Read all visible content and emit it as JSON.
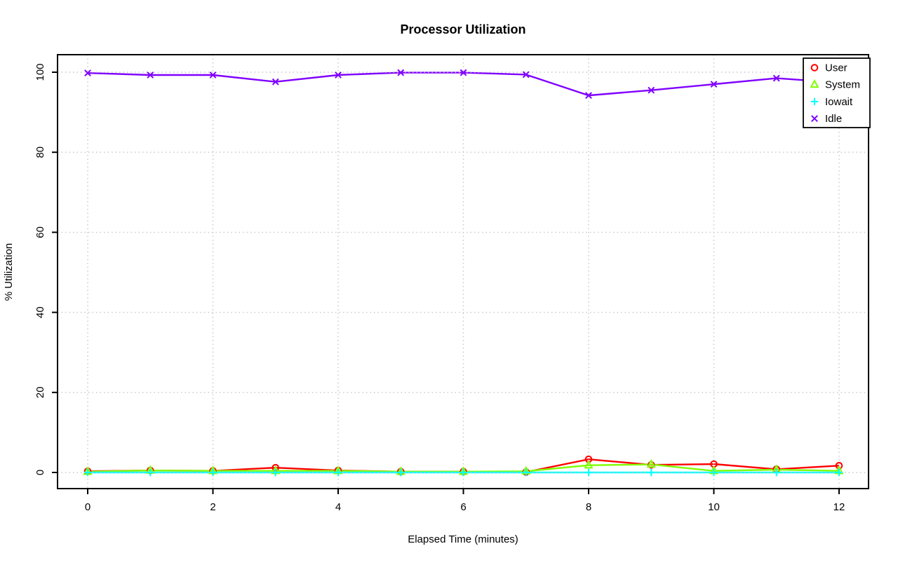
{
  "chart_data": {
    "type": "line",
    "title": "Processor Utilization",
    "xlabel": "Elapsed Time (minutes)",
    "ylabel": "% Utilization",
    "x": [
      0,
      1,
      2,
      3,
      4,
      5,
      6,
      7,
      8,
      9,
      10,
      11,
      12
    ],
    "xlim": [
      0,
      12
    ],
    "ylim": [
      0,
      100
    ],
    "xticks": [
      0,
      2,
      4,
      6,
      8,
      10,
      12
    ],
    "yticks": [
      0,
      20,
      40,
      60,
      80,
      100
    ],
    "grid": true,
    "grid_style": "dotted",
    "grid_color": "#c6c6c6",
    "axis_color": "#000000",
    "background_color": "#ffffff",
    "legend_position": "top-right",
    "legend_entries": [
      "User",
      "System",
      "Iowait",
      "Idle"
    ],
    "series": [
      {
        "name": "User",
        "color": "#FF0000",
        "marker": "circle",
        "values": [
          0.3,
          0.5,
          0.4,
          1.2,
          0.5,
          0.2,
          0.2,
          0.1,
          3.3,
          1.9,
          2.1,
          0.8,
          1.7
        ]
      },
      {
        "name": "System",
        "color": "#80FF00",
        "marker": "triangle",
        "values": [
          0.2,
          0.5,
          0.4,
          0.4,
          0.4,
          0.2,
          0.2,
          0.3,
          1.8,
          2.0,
          0.4,
          0.7,
          0.4
        ]
      },
      {
        "name": "Iowait",
        "color": "#00FFFF",
        "marker": "plus",
        "values": [
          0,
          0,
          0,
          0,
          0,
          0,
          0,
          0,
          0,
          0,
          0,
          0,
          0
        ]
      },
      {
        "name": "Idle",
        "color": "#8000FF",
        "marker": "x",
        "values": [
          99.8,
          99.3,
          99.3,
          97.6,
          99.3,
          99.9,
          99.9,
          99.4,
          94.2,
          95.5,
          97.0,
          98.5,
          97.4
        ]
      }
    ]
  }
}
